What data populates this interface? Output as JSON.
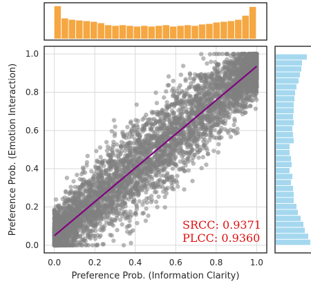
{
  "chart_data": [
    {
      "type": "scatter",
      "title": "",
      "xlabel": "Preference Prob. (Information Clarity)",
      "ylabel": "Preference Prob. (Emotion Interaction)",
      "xlim": [
        -0.05,
        1.05
      ],
      "ylim": [
        -0.04,
        1.04
      ],
      "xticks": [
        "0.0",
        "0.2",
        "0.4",
        "0.6",
        "0.8",
        "1.0"
      ],
      "yticks": [
        "0.0",
        "0.2",
        "0.4",
        "0.6",
        "0.8",
        "1.0"
      ],
      "grid": true,
      "point_color": "#808080",
      "point_count": 5000,
      "point_spread_sd": 0.11,
      "fit_line": {
        "color": "#800080",
        "x": [
          0.0,
          1.0
        ],
        "y": [
          0.05,
          0.935
        ]
      },
      "annotations": [
        "SRCC: 0.9371",
        "PLCC: 0.9360"
      ],
      "annotation_color": "#e01010"
    },
    {
      "type": "bar",
      "role": "top-marginal-histogram",
      "orientation": "vertical",
      "color": "#f5a742",
      "bin_range": [
        0.0,
        1.0
      ],
      "values": [
        48,
        30,
        28,
        27,
        26,
        25,
        23,
        20,
        19,
        20,
        19,
        18,
        19,
        18,
        19,
        20,
        18,
        19,
        20,
        19,
        21,
        22,
        24,
        25,
        26,
        28,
        34,
        47
      ]
    },
    {
      "type": "bar",
      "role": "right-marginal-histogram",
      "orientation": "horizontal",
      "color": "#a5d8ef",
      "bin_range": [
        0.0,
        1.0
      ],
      "values_bottom_to_top": [
        50,
        47,
        42,
        40,
        36,
        32,
        30,
        26,
        26,
        25,
        22,
        24,
        20,
        23,
        22,
        20,
        20,
        26,
        25,
        24,
        26,
        25,
        26,
        26,
        27,
        28,
        30,
        33,
        35,
        37,
        38,
        45
      ]
    }
  ]
}
